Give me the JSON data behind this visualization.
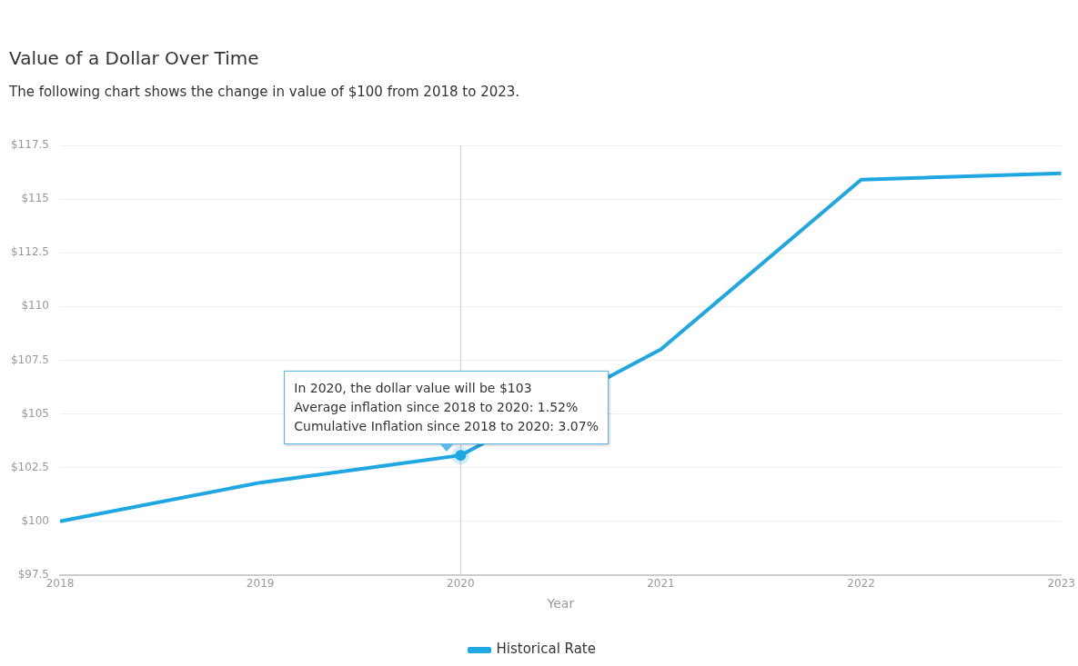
{
  "chart_data": {
    "type": "line",
    "title": "Value of a Dollar Over Time",
    "subtitle": "The following chart shows the change in value of $100 from 2018 to 2023.",
    "xlabel": "Year",
    "x": [
      2018,
      2019,
      2020,
      2021,
      2022,
      2023
    ],
    "series": [
      {
        "name": "Historical Rate",
        "color": "#1ea7e1",
        "values": [
          100,
          101.8,
          103.07,
          108.0,
          115.9,
          116.2
        ]
      }
    ],
    "xlim": [
      2018,
      2023
    ],
    "xticks": [
      2018,
      2019,
      2020,
      2021,
      2022,
      2023
    ],
    "ylim": [
      97.5,
      117.5
    ],
    "yticks": [
      {
        "value": 97.5,
        "label": "$97.5"
      },
      {
        "value": 100,
        "label": "$100"
      },
      {
        "value": 102.5,
        "label": "$102.5"
      },
      {
        "value": 105,
        "label": "$105"
      },
      {
        "value": 107.5,
        "label": "$107.5"
      },
      {
        "value": 110,
        "label": "$110"
      },
      {
        "value": 112.5,
        "label": "$112.5"
      },
      {
        "value": 115,
        "label": "$115"
      },
      {
        "value": 117.5,
        "label": "$117.5"
      }
    ],
    "grid": "y",
    "legend": "bottom",
    "marker": "none",
    "line_style": "solid",
    "ref_lines": [
      {
        "axis": "x",
        "value": 2020,
        "color": "#cccccc"
      }
    ],
    "annotations": [
      {
        "text": "In 2020, the dollar value will be $103\nAverage inflation since 2018 to 2020: 1.52%\nCumulative Inflation since 2018 to 2020: 3.07%",
        "x": 2020,
        "y": 103.07
      }
    ]
  }
}
